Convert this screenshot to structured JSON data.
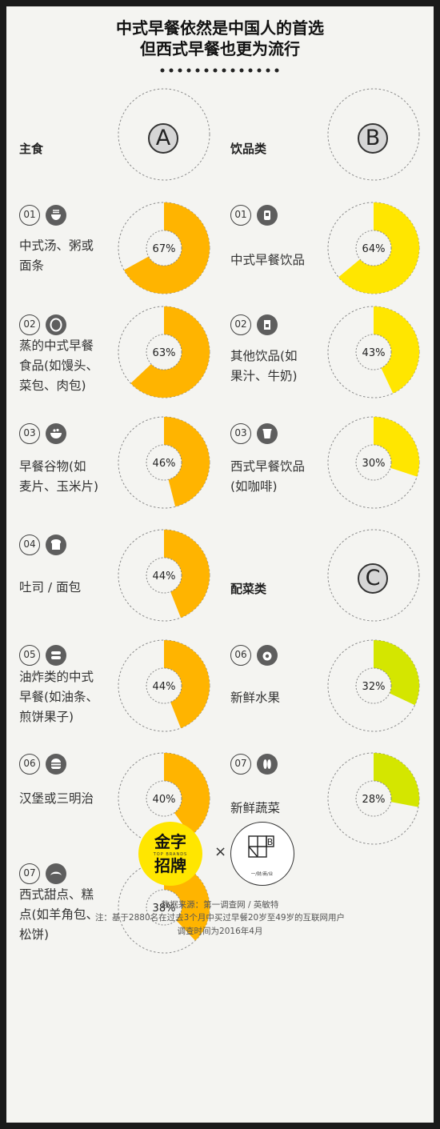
{
  "title_line1": "中式早餐依然是中国人的首选",
  "title_line2": "但西式早餐也更为流行",
  "sections": [
    {
      "label": "主食",
      "badge": "A"
    },
    {
      "label": "饮品类",
      "badge": "B"
    },
    {
      "label": "配菜类",
      "badge": "C"
    }
  ],
  "left_items": [
    {
      "num": "01",
      "icon": "bowl-noodle-icon",
      "lines": [
        "中式汤、粥或",
        "面条"
      ],
      "value": "67%"
    },
    {
      "num": "02",
      "icon": "steamed-bun-icon",
      "lines": [
        "蒸的中式早餐",
        "食品(如馒头、",
        "菜包、肉包)"
      ],
      "value": "63%"
    },
    {
      "num": "03",
      "icon": "cereal-bowl-icon",
      "lines": [
        "早餐谷物(如",
        "麦片、玉米片)"
      ],
      "value": "46%"
    },
    {
      "num": "04",
      "icon": "toast-icon",
      "lines": [
        "吐司 / 面包"
      ],
      "value": "44%"
    },
    {
      "num": "05",
      "icon": "fried-dough-icon",
      "lines": [
        "油炸类的中式",
        "早餐(如油条、",
        "煎饼果子)"
      ],
      "value": "44%"
    },
    {
      "num": "06",
      "icon": "burger-icon",
      "lines": [
        "汉堡或三明治"
      ],
      "value": "40%"
    },
    {
      "num": "07",
      "icon": "croissant-icon",
      "lines": [
        "西式甜点、糕",
        "点(如羊角包、",
        "松饼)"
      ],
      "value": "38%"
    }
  ],
  "right_items": [
    {
      "num": "01",
      "icon": "soy-milk-machine-icon",
      "lines": [
        "中式早餐饮品"
      ],
      "value": "64%"
    },
    {
      "num": "02",
      "icon": "juice-box-icon",
      "lines": [
        "其他饮品(如",
        "果汁、牛奶)"
      ],
      "value": "43%"
    },
    {
      "num": "03",
      "icon": "coffee-cup-icon",
      "lines": [
        "西式早餐饮品",
        "(如咖啡)"
      ],
      "value": "30%"
    },
    {
      "num": "06",
      "icon": "fruit-icon",
      "lines": [
        "新鲜水果"
      ],
      "value": "32%"
    },
    {
      "num": "07",
      "icon": "vegetable-icon",
      "lines": [
        "新鲜蔬菜"
      ],
      "value": "28%"
    }
  ],
  "colors": {
    "staple": "#ffb400",
    "drinks": "#ffe600",
    "sides": "#d4e600",
    "ring_outline": "#8a8a8a",
    "background": "#f4f4f1"
  },
  "chart_data": [
    {
      "type": "pie",
      "group": "主食",
      "categories": [
        "中式汤、粥或面条",
        "蒸的中式早餐食品(如馒头、菜包、肉包)",
        "早餐谷物(如麦片、玉米片)",
        "吐司 / 面包",
        "油炸类的中式早餐(如油条、煎饼果子)",
        "汉堡或三明治",
        "西式甜点、糕点(如羊角包、松饼)"
      ],
      "values": [
        67,
        63,
        46,
        44,
        44,
        40,
        38
      ]
    },
    {
      "type": "pie",
      "group": "饮品类",
      "categories": [
        "中式早餐饮品",
        "其他饮品(如果汁、牛奶)",
        "西式早餐饮品(如咖啡)"
      ],
      "values": [
        64,
        43,
        30
      ]
    },
    {
      "type": "pie",
      "group": "配菜类",
      "categories": [
        "新鲜水果",
        "新鲜蔬菜"
      ],
      "values": [
        32,
        28
      ]
    }
  ],
  "footer": {
    "logo1_line1": "金字",
    "logo1_sub": "TOP BRANDS",
    "logo1_line2": "招牌",
    "times": "×",
    "logo2_letter": "B",
    "logo2_caption": "一/财/商/业",
    "source": "数据来源：第一调查网 / 英敏特",
    "note": "注：基于2880名在过去3个月中买过早餐20岁至49岁的互联网用户",
    "date": "调查时间为2016年4月"
  }
}
